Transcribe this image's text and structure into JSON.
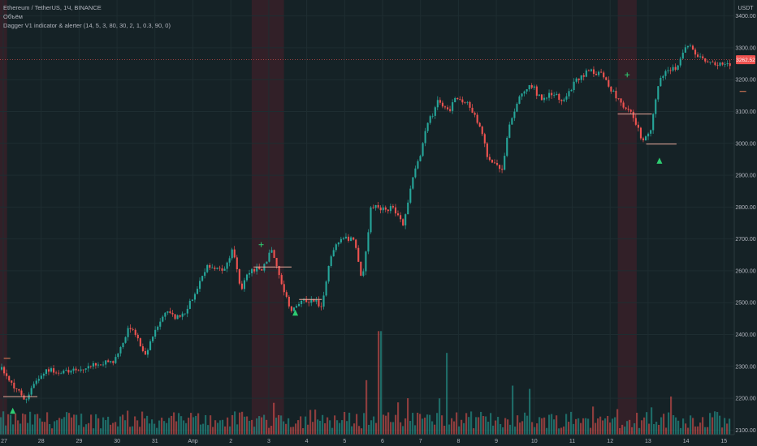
{
  "legend": {
    "symbol_line": "Ethereum / TetherUS, 1Ч, BINANCE",
    "volume_label": "Объём",
    "indicator_line": "Dagger V1 indicator & alerter (14, 5, 3, 80, 30, 2, 1, 0.3, 90, 0)"
  },
  "currency_label": "USDT",
  "last_price_label": "3262.52",
  "colors": {
    "background": "#152226",
    "up": "#26a69a",
    "down": "#ef5350",
    "signal": "#2ecc71",
    "level_line": "#e8a89a",
    "band": "#4a1f2a",
    "grid": "#1e2d31"
  },
  "chart_data": {
    "type": "candlestick",
    "timeframe": "1 hour",
    "ylim": [
      2050,
      3450
    ],
    "price_ticks": [
      3400,
      3300,
      3200,
      3100,
      3000,
      2900,
      2800,
      2700,
      2600,
      2500,
      2400,
      2300,
      2200,
      2100
    ],
    "price_tick_labels": [
      "3400.00",
      "3300.00",
      "3200.00",
      "3100.00",
      "3000.00",
      "2900.00",
      "2800.00",
      "2700.00",
      "2600.00",
      "2500.00",
      "2400.00",
      "2300.00",
      "2200.00",
      "2100.00"
    ],
    "time_labels": [
      "27",
      "28",
      "29",
      "30",
      "31",
      "Апр",
      "2",
      "3",
      "4",
      "5",
      "6",
      "7",
      "8",
      "9",
      "10",
      "11",
      "12",
      "13",
      "14",
      "15"
    ],
    "day_count": 20,
    "last_price": 3262.52,
    "price_path": [
      [
        0,
        2290
      ],
      [
        0.3,
        2240
      ],
      [
        0.6,
        2195
      ],
      [
        0.9,
        2250
      ],
      [
        1.2,
        2295
      ],
      [
        1.5,
        2275
      ],
      [
        2.0,
        2290
      ],
      [
        2.5,
        2305
      ],
      [
        3.0,
        2320
      ],
      [
        3.2,
        2370
      ],
      [
        3.35,
        2430
      ],
      [
        3.6,
        2380
      ],
      [
        3.8,
        2330
      ],
      [
        4.0,
        2400
      ],
      [
        4.3,
        2470
      ],
      [
        4.6,
        2450
      ],
      [
        4.8,
        2460
      ],
      [
        5.2,
        2560
      ],
      [
        5.45,
        2620
      ],
      [
        5.7,
        2605
      ],
      [
        5.9,
        2610
      ],
      [
        6.1,
        2680
      ],
      [
        6.3,
        2530
      ],
      [
        6.5,
        2600
      ],
      [
        6.9,
        2610
      ],
      [
        7.1,
        2665
      ],
      [
        7.4,
        2560
      ],
      [
        7.6,
        2480
      ],
      [
        7.9,
        2500
      ],
      [
        8.15,
        2510
      ],
      [
        8.45,
        2490
      ],
      [
        8.7,
        2660
      ],
      [
        9.0,
        2710
      ],
      [
        9.3,
        2690
      ],
      [
        9.5,
        2560
      ],
      [
        9.75,
        2810
      ],
      [
        10.0,
        2790
      ],
      [
        10.3,
        2800
      ],
      [
        10.6,
        2740
      ],
      [
        10.8,
        2870
      ],
      [
        11.0,
        2950
      ],
      [
        11.2,
        3050
      ],
      [
        11.5,
        3130
      ],
      [
        11.8,
        3100
      ],
      [
        12.0,
        3150
      ],
      [
        12.3,
        3120
      ],
      [
        12.6,
        3060
      ],
      [
        12.8,
        2960
      ],
      [
        13.2,
        2920
      ],
      [
        13.4,
        3070
      ],
      [
        13.6,
        3130
      ],
      [
        13.8,
        3170
      ],
      [
        14.0,
        3180
      ],
      [
        14.2,
        3140
      ],
      [
        14.5,
        3160
      ],
      [
        14.8,
        3130
      ],
      [
        15.1,
        3190
      ],
      [
        15.5,
        3230
      ],
      [
        15.8,
        3215
      ],
      [
        16.2,
        3150
      ],
      [
        16.6,
        3090
      ],
      [
        16.9,
        3010
      ],
      [
        17.1,
        3030
      ],
      [
        17.3,
        3180
      ],
      [
        17.5,
        3235
      ],
      [
        17.8,
        3240
      ],
      [
        18.1,
        3310
      ],
      [
        18.4,
        3270
      ],
      [
        18.8,
        3250
      ],
      [
        19.1,
        3240
      ],
      [
        19.4,
        3262
      ]
    ],
    "volume_spikes": [
      [
        9.55,
        0.5
      ],
      [
        9.9,
        0.95
      ],
      [
        11.65,
        0.75
      ],
      [
        13.4,
        0.45
      ],
      [
        13.85,
        0.42
      ],
      [
        17.6,
        0.35
      ]
    ],
    "signals": [
      {
        "type": "buy",
        "day": 0.25,
        "price": 2160
      },
      {
        "type": "buy",
        "day": 7.7,
        "price": 2468
      },
      {
        "type": "buy",
        "day": 17.3,
        "price": 2945
      },
      {
        "type": "sell",
        "day": 6.8,
        "price": 2682
      },
      {
        "type": "sell",
        "day": 16.45,
        "price": 3215
      }
    ],
    "level_segments": [
      {
        "day_start": 0.0,
        "day_end": 0.9,
        "price": 2205
      },
      {
        "day_start": 6.6,
        "day_end": 7.6,
        "price": 2612
      },
      {
        "day_start": 7.8,
        "day_end": 8.4,
        "price": 2510
      },
      {
        "day_start": 16.2,
        "day_end": 17.1,
        "price": 3092
      },
      {
        "day_start": 16.95,
        "day_end": 17.75,
        "price": 2998
      }
    ],
    "short_marks": [
      {
        "day": 0.1,
        "price": 2325
      },
      {
        "day": 19.5,
        "price": 3163
      }
    ],
    "shaded_day_ranges": [
      [
        -0.4,
        0.1
      ],
      [
        6.55,
        7.4
      ],
      [
        16.2,
        16.7
      ]
    ]
  }
}
